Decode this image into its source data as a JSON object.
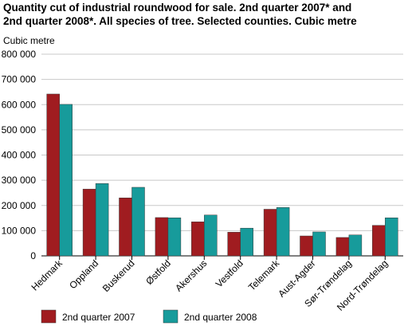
{
  "chart_data": {
    "type": "bar",
    "title_line1": "Quantity cut of industrial roundwood for sale. 2nd quarter 2007* and",
    "title_line2": "2nd quarter 2008*. All species of tree. Selected counties. Cubic metre",
    "ylabel": "Cubic metre",
    "ylim": [
      0,
      800000
    ],
    "yticks": [
      "0",
      "100 000",
      "200 000",
      "300 000",
      "400 000",
      "500 000",
      "600 000",
      "700 000",
      "800 000"
    ],
    "grid": true,
    "legend_position": "bottom",
    "categories": [
      "Hedmark",
      "Oppland",
      "Buskerud",
      "Østfold",
      "Akershus",
      "Vestfold",
      "Telemark",
      "Aust-Agder",
      "Sør-Trøndelag",
      "Nord-Trøndelag"
    ],
    "series": [
      {
        "name": "2nd quarter 2007",
        "color": "#a01c20",
        "values": [
          642000,
          265000,
          230000,
          152000,
          135000,
          94000,
          185000,
          79000,
          73000,
          121000
        ]
      },
      {
        "name": "2nd quarter 2008",
        "color": "#179b9b",
        "values": [
          601000,
          287000,
          272000,
          151000,
          162000,
          110000,
          192000,
          95000,
          83000,
          151000
        ]
      }
    ]
  }
}
